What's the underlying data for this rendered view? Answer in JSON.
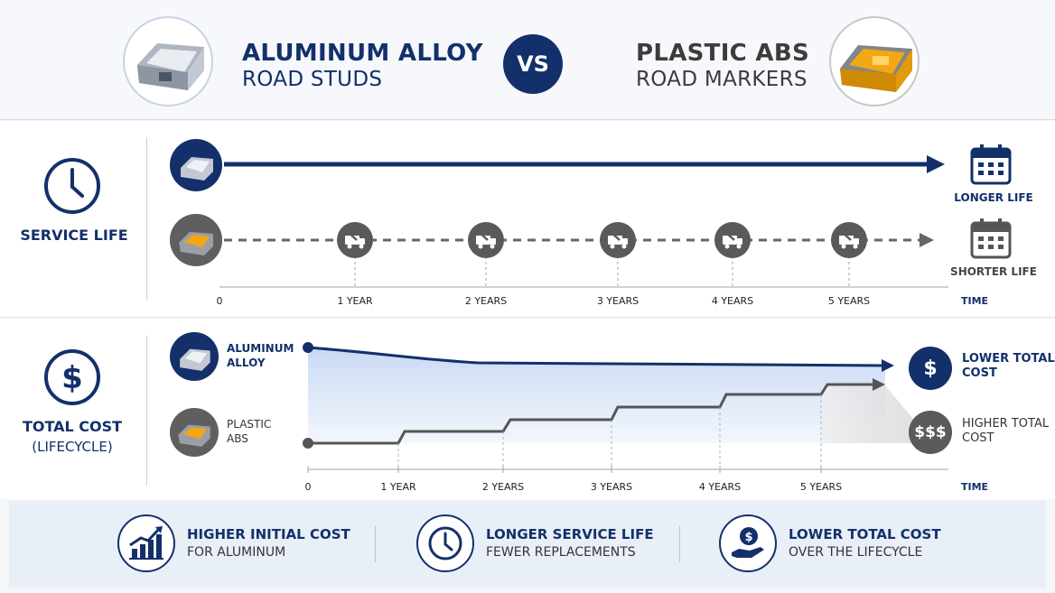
{
  "header": {
    "left_title": "ALUMINUM ALLOY",
    "left_subtitle": "ROAD STUDS",
    "vs": "VS",
    "right_title": "PLASTIC ABS",
    "right_subtitle": "ROAD MARKERS"
  },
  "service_life": {
    "label": "SERVICE LIFE",
    "longer_label": "LONGER LIFE",
    "shorter_label": "SHORTER LIFE",
    "ticks": [
      "0",
      "1 YEAR",
      "2 YEARS",
      "3 YEARS",
      "4 YEARS",
      "5 YEARS"
    ],
    "axis_label": "TIME",
    "replacement_icon": "truck-wrench-icon"
  },
  "total_cost": {
    "label": "TOTAL COST",
    "sublabel": "(LIFECYCLE)",
    "aluminum_label_1": "ALUMINUM",
    "aluminum_label_2": "ALLOY",
    "plastic_label_1": "PLASTIC",
    "plastic_label_2": "ABS",
    "lower_badge": "$",
    "higher_badge": "$$$",
    "lower_label_1": "LOWER TOTAL",
    "lower_label_2": "COST",
    "higher_label_1": "HIGHER TOTAL",
    "higher_label_2": "COST",
    "ticks": [
      "0",
      "1 YEAR",
      "2 YEARS",
      "3 YEARS",
      "4 YEARS",
      "5 YEARS"
    ],
    "axis_label": "TIME"
  },
  "chart_data": {
    "type": "line",
    "x": [
      "0",
      "1 YEAR",
      "2 YEARS",
      "3 YEARS",
      "4 YEARS",
      "5 YEARS"
    ],
    "series": [
      {
        "name": "ALUMINUM ALLOY",
        "shape": "high start, gently declining then flat"
      },
      {
        "name": "PLASTIC ABS",
        "shape": "low start, step increase at each replacement year"
      }
    ],
    "xlabel": "TIME"
  },
  "features": [
    {
      "title": "HIGHER INITIAL COST",
      "subtitle": "FOR ALUMINUM",
      "icon": "bar-chart-rising-icon"
    },
    {
      "title": "LONGER SERVICE LIFE",
      "subtitle": "FEWER REPLACEMENTS",
      "icon": "clock-icon"
    },
    {
      "title": "LOWER TOTAL COST",
      "subtitle": "OVER THE LIFECYCLE",
      "icon": "hand-dollar-icon"
    }
  ],
  "colors": {
    "navy": "#13306b",
    "grey_line": "#555555",
    "amber": "#f3a712",
    "light_blue": "#dde8f8"
  }
}
